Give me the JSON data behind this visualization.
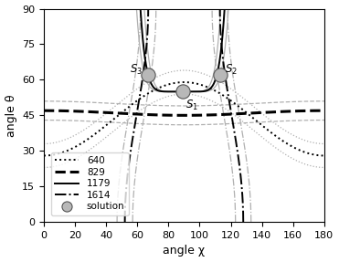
{
  "xlabel": "angle χ",
  "ylabel": "angle θ",
  "xlim": [
    0,
    180
  ],
  "ylim": [
    0,
    90
  ],
  "xticks": [
    0,
    20,
    40,
    60,
    80,
    100,
    120,
    140,
    160,
    180
  ],
  "yticks": [
    0,
    15,
    30,
    45,
    60,
    75,
    90
  ],
  "solutions": [
    {
      "chi": 89,
      "theta": 55,
      "label": "S_1"
    },
    {
      "chi": 113,
      "theta": 62,
      "label": "S_2"
    },
    {
      "chi": 67,
      "theta": 62,
      "label": "S_3"
    }
  ],
  "black": "#000000",
  "grey": "#b0b0b0",
  "sol_face": "#b8b8b8",
  "sol_edge": "#555555",
  "figsize": [
    3.71,
    2.87
  ],
  "dpi": 100
}
